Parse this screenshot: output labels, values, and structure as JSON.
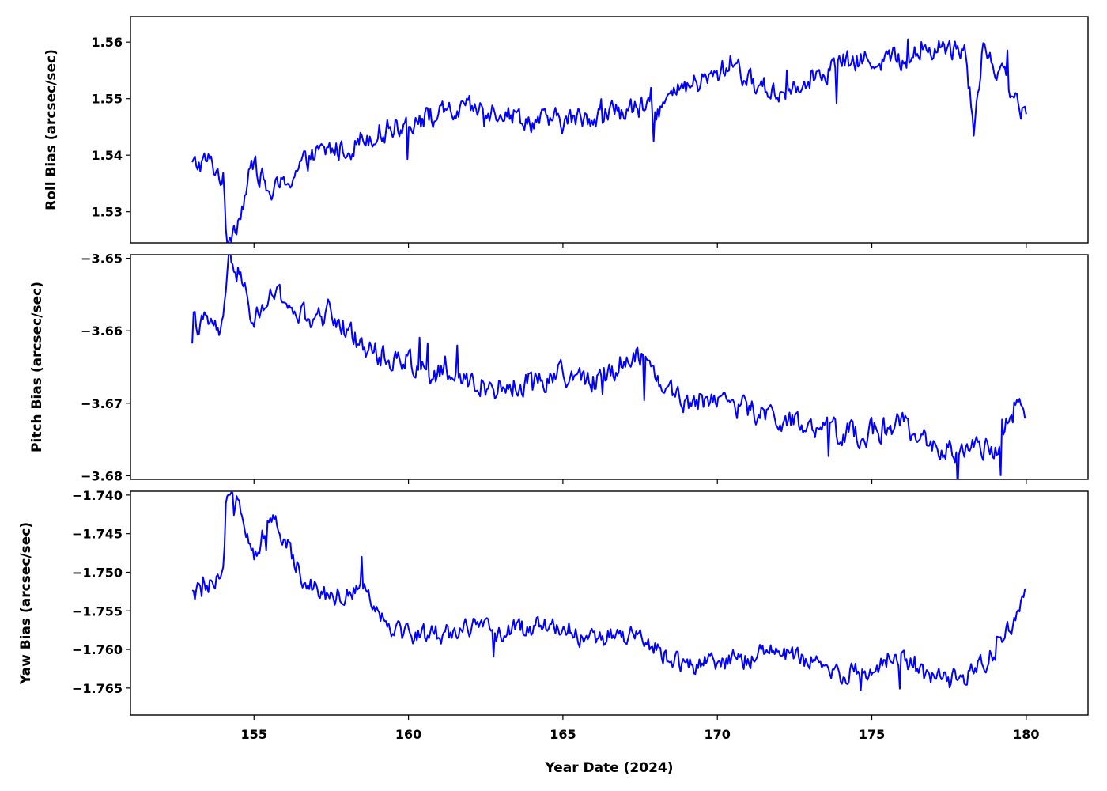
{
  "chart_data": [
    {
      "type": "line",
      "ylabel": "Roll Bias (arcsec/sec)",
      "xlim": [
        151,
        182
      ],
      "ylim": [
        1.5245,
        1.5645
      ],
      "yticks": [
        1.53,
        1.54,
        1.55,
        1.56
      ],
      "ytick_labels": [
        "1.53",
        "1.54",
        "1.55",
        "1.56"
      ],
      "xticks": [
        155,
        160,
        165,
        170,
        175,
        180
      ],
      "grid": false,
      "series": [
        {
          "color": "#0000ff",
          "x": [
            153.0,
            153.5,
            154.0,
            154.1,
            154.5,
            155.0,
            155.5,
            156.0,
            156.5,
            157.0,
            157.5,
            158.0,
            158.5,
            159.0,
            159.5,
            160.0,
            161.0,
            162.0,
            163.0,
            164.0,
            165.0,
            166.0,
            167.0,
            168.0,
            169.0,
            170.0,
            170.5,
            171.0,
            172.0,
            173.0,
            174.0,
            175.0,
            176.0,
            177.0,
            178.0,
            178.3,
            178.6,
            179.0,
            179.5,
            180.0
          ],
          "y": [
            1.538,
            1.539,
            1.536,
            1.525,
            1.529,
            1.539,
            1.533,
            1.535,
            1.538,
            1.54,
            1.541,
            1.541,
            1.543,
            1.544,
            1.545,
            1.546,
            1.547,
            1.548,
            1.548,
            1.546,
            1.546,
            1.547,
            1.548,
            1.548,
            1.552,
            1.554,
            1.557,
            1.553,
            1.551,
            1.554,
            1.556,
            1.557,
            1.557,
            1.559,
            1.559,
            1.545,
            1.559,
            1.556,
            1.552,
            1.546
          ]
        }
      ]
    },
    {
      "type": "line",
      "ylabel": "Pitch Bias (arcsec/sec)",
      "xlim": [
        151,
        182
      ],
      "ylim": [
        -3.6805,
        -3.6495
      ],
      "yticks": [
        -3.68,
        -3.67,
        -3.66,
        -3.65
      ],
      "ytick_labels": [
        "−3.68",
        "−3.67",
        "−3.66",
        "−3.65"
      ],
      "xticks": [
        155,
        160,
        165,
        170,
        175,
        180
      ],
      "grid": false,
      "series": [
        {
          "color": "#0000ff",
          "x": [
            153.0,
            153.5,
            154.0,
            154.2,
            154.5,
            155.0,
            155.5,
            156.0,
            156.5,
            157.0,
            157.5,
            158.0,
            158.5,
            159.0,
            159.5,
            160.0,
            161.0,
            162.0,
            163.0,
            164.0,
            165.0,
            166.0,
            167.0,
            167.5,
            168.0,
            169.0,
            170.0,
            171.0,
            172.0,
            173.0,
            174.0,
            175.0,
            176.0,
            177.0,
            178.0,
            179.0,
            179.5,
            180.0
          ],
          "y": [
            -3.659,
            -3.659,
            -3.66,
            -3.65,
            -3.652,
            -3.659,
            -3.655,
            -3.656,
            -3.658,
            -3.659,
            -3.657,
            -3.66,
            -3.662,
            -3.663,
            -3.664,
            -3.664,
            -3.666,
            -3.667,
            -3.668,
            -3.667,
            -3.666,
            -3.667,
            -3.664,
            -3.663,
            -3.666,
            -3.67,
            -3.669,
            -3.671,
            -3.672,
            -3.674,
            -3.674,
            -3.674,
            -3.673,
            -3.676,
            -3.677,
            -3.676,
            -3.672,
            -3.671
          ]
        }
      ]
    },
    {
      "type": "line",
      "ylabel": "Yaw Bias (arcsec/sec)",
      "xlim": [
        151,
        182
      ],
      "ylim": [
        -1.7685,
        -1.7395
      ],
      "yticks": [
        -1.765,
        -1.76,
        -1.755,
        -1.75,
        -1.745,
        -1.74
      ],
      "ytick_labels": [
        "−1.765",
        "−1.760",
        "−1.755",
        "−1.750",
        "−1.745",
        "−1.740"
      ],
      "xticks": [
        155,
        160,
        165,
        170,
        175,
        180
      ],
      "xtick_labels": [
        "155",
        "160",
        "165",
        "170",
        "175",
        "180"
      ],
      "xlabel": "Year Date (2024)",
      "grid": false,
      "series": [
        {
          "color": "#0000ff",
          "x": [
            153.0,
            153.5,
            154.0,
            154.1,
            154.5,
            155.0,
            155.5,
            156.0,
            156.5,
            157.0,
            157.5,
            158.0,
            158.5,
            159.0,
            159.5,
            160.0,
            161.0,
            162.0,
            163.0,
            164.0,
            165.0,
            166.0,
            167.0,
            168.0,
            169.0,
            170.0,
            171.0,
            172.0,
            173.0,
            174.0,
            175.0,
            175.5,
            176.0,
            177.0,
            178.0,
            179.0,
            179.5,
            180.0
          ],
          "y": [
            -1.753,
            -1.752,
            -1.751,
            -1.741,
            -1.74,
            -1.748,
            -1.743,
            -1.746,
            -1.75,
            -1.752,
            -1.753,
            -1.753,
            -1.751,
            -1.755,
            -1.757,
            -1.758,
            -1.758,
            -1.757,
            -1.758,
            -1.757,
            -1.757,
            -1.759,
            -1.758,
            -1.76,
            -1.762,
            -1.762,
            -1.761,
            -1.76,
            -1.762,
            -1.763,
            -1.763,
            -1.761,
            -1.761,
            -1.764,
            -1.764,
            -1.76,
            -1.757,
            -1.751
          ]
        }
      ]
    }
  ]
}
